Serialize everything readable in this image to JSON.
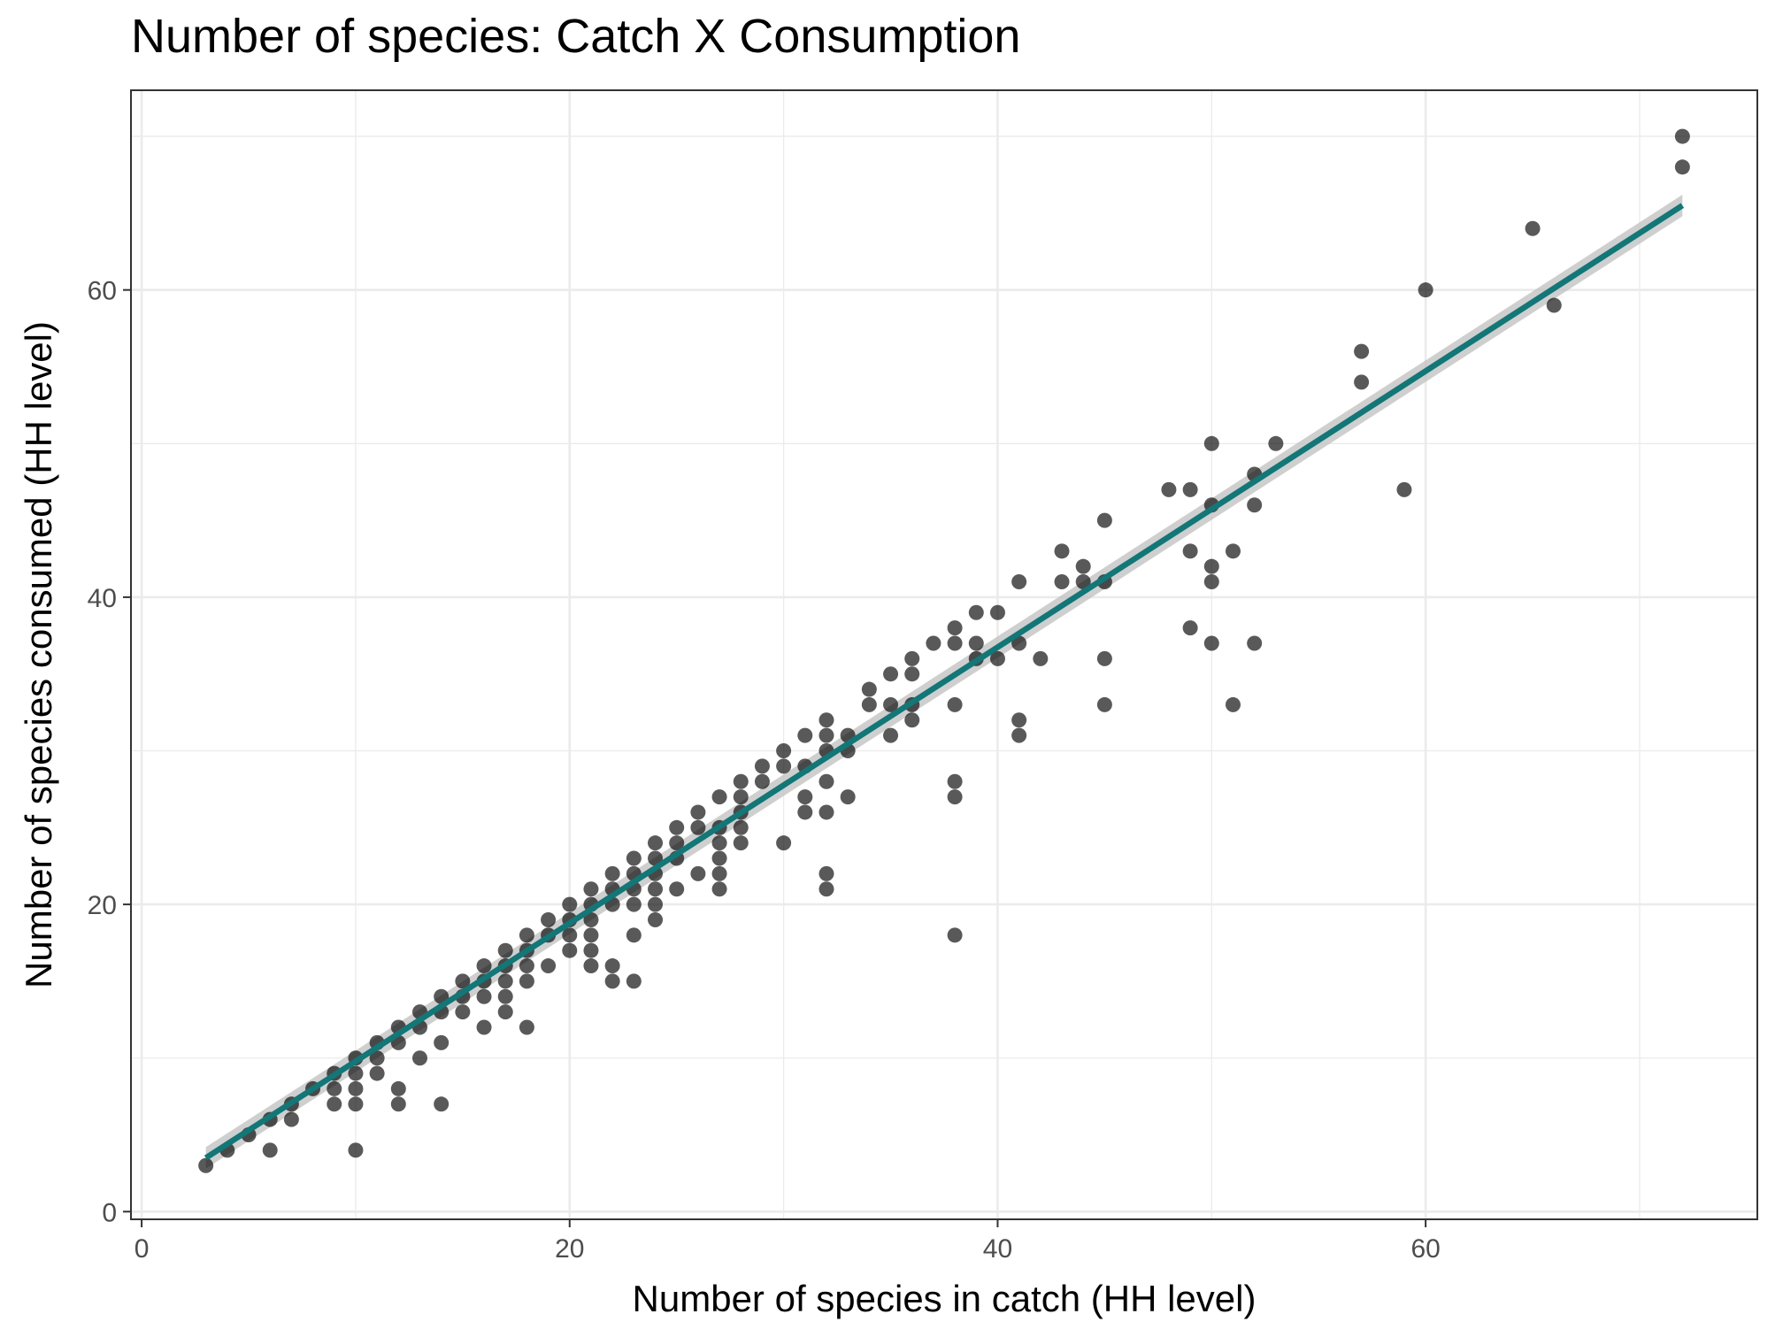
{
  "chart_data": {
    "type": "scatter",
    "title": "Number of species: Catch X Consumption",
    "xlabel": "Number of species in catch (HH level)",
    "ylabel": "Number of species consumed (HH level)",
    "xlim": [
      -0.5,
      75.5
    ],
    "ylim": [
      -0.5,
      73.0
    ],
    "x_ticks": [
      0,
      20,
      40,
      60
    ],
    "y_ticks": [
      0,
      20,
      40,
      60
    ],
    "x_tick_labels": [
      "0",
      "20",
      "40",
      "60"
    ],
    "y_tick_labels": [
      "0",
      "20",
      "40",
      "60"
    ],
    "grid": true,
    "point_color": "#000000",
    "point_opacity": 0.65,
    "trend_color": "#137677",
    "band_color": "#bfbfbf",
    "trend_line": {
      "x": [
        3,
        72
      ],
      "y": [
        3.5,
        65.5
      ],
      "se": 0.7
    },
    "points": [
      [
        3,
        3
      ],
      [
        4,
        4
      ],
      [
        5,
        5
      ],
      [
        6,
        6
      ],
      [
        6,
        4
      ],
      [
        7,
        7
      ],
      [
        7,
        6
      ],
      [
        8,
        8
      ],
      [
        9,
        9
      ],
      [
        9,
        8
      ],
      [
        9,
        7
      ],
      [
        10,
        10
      ],
      [
        10,
        9
      ],
      [
        10,
        8
      ],
      [
        10,
        7
      ],
      [
        10,
        4
      ],
      [
        11,
        11
      ],
      [
        11,
        10
      ],
      [
        11,
        9
      ],
      [
        12,
        12
      ],
      [
        12,
        11
      ],
      [
        12,
        8
      ],
      [
        12,
        7
      ],
      [
        13,
        13
      ],
      [
        13,
        12
      ],
      [
        13,
        10
      ],
      [
        14,
        14
      ],
      [
        14,
        13
      ],
      [
        14,
        11
      ],
      [
        14,
        7
      ],
      [
        15,
        15
      ],
      [
        15,
        14
      ],
      [
        15,
        13
      ],
      [
        16,
        16
      ],
      [
        16,
        15
      ],
      [
        16,
        14
      ],
      [
        16,
        12
      ],
      [
        17,
        17
      ],
      [
        17,
        16
      ],
      [
        17,
        15
      ],
      [
        17,
        14
      ],
      [
        17,
        13
      ],
      [
        18,
        18
      ],
      [
        18,
        17
      ],
      [
        18,
        16
      ],
      [
        18,
        15
      ],
      [
        18,
        12
      ],
      [
        19,
        19
      ],
      [
        19,
        18
      ],
      [
        19,
        16
      ],
      [
        20,
        20
      ],
      [
        20,
        19
      ],
      [
        20,
        18
      ],
      [
        20,
        17
      ],
      [
        21,
        21
      ],
      [
        21,
        20
      ],
      [
        21,
        19
      ],
      [
        21,
        18
      ],
      [
        21,
        17
      ],
      [
        21,
        16
      ],
      [
        22,
        22
      ],
      [
        22,
        21
      ],
      [
        22,
        20
      ],
      [
        22,
        16
      ],
      [
        22,
        15
      ],
      [
        23,
        23
      ],
      [
        23,
        22
      ],
      [
        23,
        21
      ],
      [
        23,
        20
      ],
      [
        23,
        18
      ],
      [
        23,
        15
      ],
      [
        24,
        24
      ],
      [
        24,
        23
      ],
      [
        24,
        22
      ],
      [
        24,
        21
      ],
      [
        24,
        20
      ],
      [
        24,
        19
      ],
      [
        25,
        25
      ],
      [
        25,
        24
      ],
      [
        25,
        23
      ],
      [
        25,
        21
      ],
      [
        26,
        26
      ],
      [
        26,
        25
      ],
      [
        26,
        22
      ],
      [
        27,
        27
      ],
      [
        27,
        25
      ],
      [
        27,
        24
      ],
      [
        27,
        23
      ],
      [
        27,
        22
      ],
      [
        27,
        21
      ],
      [
        28,
        28
      ],
      [
        28,
        27
      ],
      [
        28,
        26
      ],
      [
        28,
        25
      ],
      [
        28,
        24
      ],
      [
        29,
        29
      ],
      [
        29,
        28
      ],
      [
        30,
        30
      ],
      [
        30,
        29
      ],
      [
        30,
        24
      ],
      [
        31,
        31
      ],
      [
        31,
        29
      ],
      [
        31,
        27
      ],
      [
        31,
        26
      ],
      [
        32,
        32
      ],
      [
        32,
        31
      ],
      [
        32,
        30
      ],
      [
        32,
        28
      ],
      [
        32,
        26
      ],
      [
        32,
        22
      ],
      [
        32,
        21
      ],
      [
        33,
        31
      ],
      [
        33,
        30
      ],
      [
        33,
        27
      ],
      [
        34,
        34
      ],
      [
        34,
        33
      ],
      [
        35,
        35
      ],
      [
        35,
        33
      ],
      [
        35,
        31
      ],
      [
        36,
        36
      ],
      [
        36,
        35
      ],
      [
        36,
        33
      ],
      [
        36,
        32
      ],
      [
        37,
        37
      ],
      [
        38,
        38
      ],
      [
        38,
        37
      ],
      [
        38,
        33
      ],
      [
        38,
        28
      ],
      [
        38,
        27
      ],
      [
        38,
        18
      ],
      [
        39,
        39
      ],
      [
        39,
        37
      ],
      [
        39,
        36
      ],
      [
        40,
        39
      ],
      [
        40,
        36
      ],
      [
        41,
        41
      ],
      [
        41,
        37
      ],
      [
        41,
        32
      ],
      [
        41,
        31
      ],
      [
        42,
        36
      ],
      [
        43,
        43
      ],
      [
        43,
        41
      ],
      [
        44,
        42
      ],
      [
        44,
        41
      ],
      [
        45,
        45
      ],
      [
        45,
        41
      ],
      [
        45,
        36
      ],
      [
        45,
        33
      ],
      [
        48,
        47
      ],
      [
        49,
        47
      ],
      [
        49,
        43
      ],
      [
        49,
        38
      ],
      [
        50,
        50
      ],
      [
        50,
        46
      ],
      [
        50,
        42
      ],
      [
        50,
        41
      ],
      [
        50,
        37
      ],
      [
        51,
        43
      ],
      [
        51,
        33
      ],
      [
        52,
        48
      ],
      [
        52,
        46
      ],
      [
        52,
        37
      ],
      [
        53,
        50
      ],
      [
        57,
        56
      ],
      [
        57,
        54
      ],
      [
        59,
        47
      ],
      [
        60,
        60
      ],
      [
        65,
        64
      ],
      [
        66,
        59
      ],
      [
        72,
        70
      ],
      [
        72,
        68
      ]
    ]
  }
}
